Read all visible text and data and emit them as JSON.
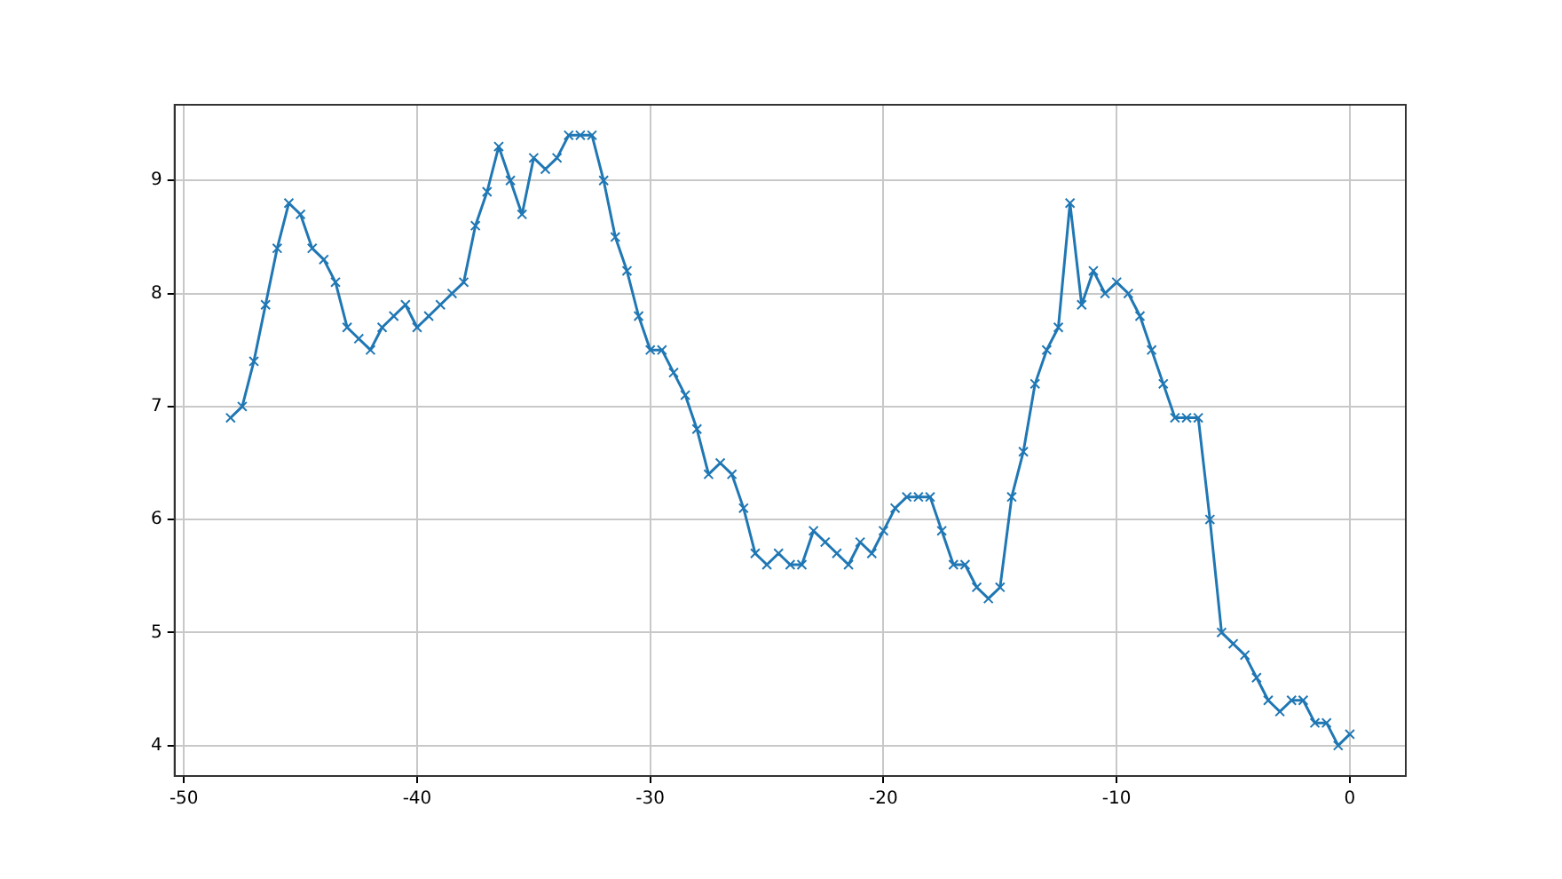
{
  "chart_data": {
    "type": "line",
    "x": [
      -48,
      -47.5,
      -47,
      -46.5,
      -46,
      -45.5,
      -45,
      -44.5,
      -44,
      -43.5,
      -43,
      -42.5,
      -42,
      -41.5,
      -41,
      -40.5,
      -40,
      -39.5,
      -39,
      -38.5,
      -38,
      -37.5,
      -37,
      -36.5,
      -36,
      -35.5,
      -35,
      -34.5,
      -34,
      -33.5,
      -33,
      -32.5,
      -32,
      -31.5,
      -31,
      -30.5,
      -30,
      -29.5,
      -29,
      -28.5,
      -28,
      -27.5,
      -27,
      -26.5,
      -26,
      -25.5,
      -25,
      -24.5,
      -24,
      -23.5,
      -23,
      -22.5,
      -22,
      -21.5,
      -21,
      -20.5,
      -20,
      -19.5,
      -19,
      -18.5,
      -18,
      -17.5,
      -17,
      -16.5,
      -16,
      -15.5,
      -15,
      -14.5,
      -14,
      -13.5,
      -13,
      -12.5,
      -12,
      -11.5,
      -11,
      -10.5,
      -10,
      -9.5,
      -9,
      -8.5,
      -8,
      -7.5,
      -7,
      -6.5,
      -6,
      -5.5,
      -5,
      -4.5,
      -4,
      -3.5,
      -3,
      -2.5,
      -2,
      -1.5,
      -1,
      -0.5,
      0
    ],
    "series": [
      {
        "color": "#1f77b4",
        "values": [
          6.9,
          7.0,
          7.4,
          7.9,
          8.4,
          8.8,
          8.7,
          8.4,
          8.3,
          8.1,
          7.7,
          7.6,
          7.5,
          7.7,
          7.8,
          7.9,
          7.7,
          7.8,
          7.9,
          8.0,
          8.1,
          8.6,
          8.9,
          9.3,
          9.0,
          8.7,
          9.2,
          9.1,
          9.2,
          9.4,
          9.4,
          9.4,
          9.0,
          8.5,
          8.2,
          7.8,
          7.5,
          7.5,
          7.3,
          7.1,
          6.8,
          6.4,
          6.5,
          6.4,
          6.1,
          5.7,
          5.6,
          5.7,
          5.6,
          5.6,
          5.9,
          5.8,
          5.7,
          5.6,
          5.8,
          5.7,
          5.9,
          6.1,
          6.2,
          6.2,
          6.2,
          5.9,
          5.6,
          5.6,
          5.4,
          5.3,
          5.4,
          6.2,
          6.6,
          7.2,
          7.5,
          7.7,
          8.8,
          7.9,
          8.2,
          8.0,
          8.1,
          8.0,
          7.8,
          7.5,
          7.2,
          6.9,
          6.9,
          6.9,
          6.0,
          5.0,
          4.9,
          4.8,
          4.6,
          4.4,
          4.3,
          4.4,
          4.4,
          4.2,
          4.2,
          4.0,
          4.1
        ]
      }
    ],
    "xlim": [
      -50.4,
      2.4
    ],
    "ylim": [
      3.73,
      9.67
    ],
    "xticks": [
      -50,
      -40,
      -30,
      -20,
      -10,
      0
    ],
    "yticks": [
      4,
      5,
      6,
      7,
      8,
      9
    ],
    "grid": true,
    "marker": "cross",
    "line_style": "solid",
    "legend": false
  }
}
